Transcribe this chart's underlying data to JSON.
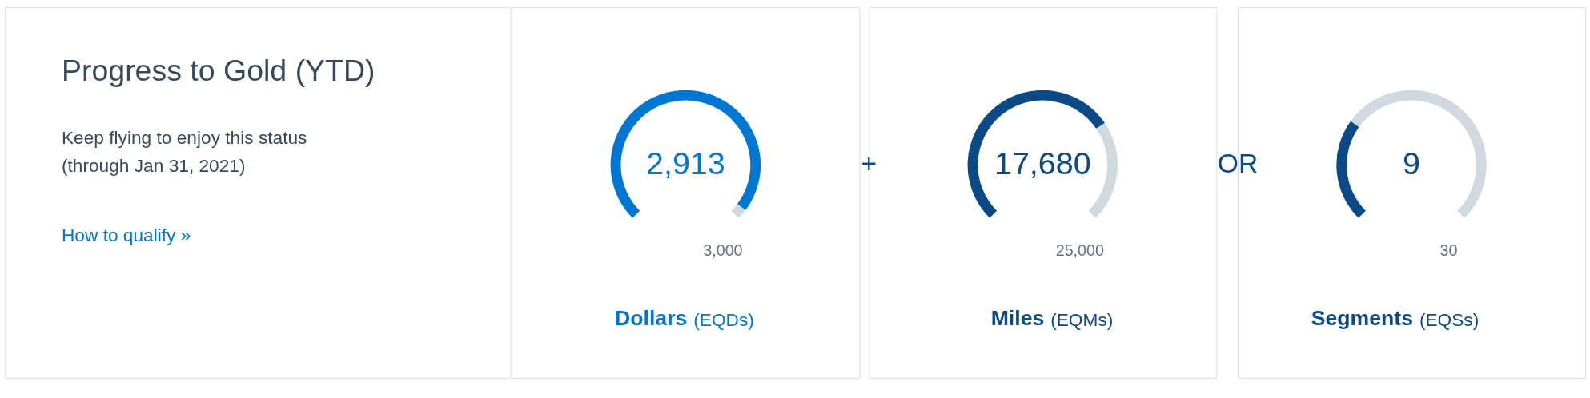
{
  "chart_data": [
    {
      "type": "other",
      "title": "Progress to Gold (YTD)",
      "subtitle": [
        "Keep flying to enjoy this status",
        "(through Jan 31, 2021)"
      ],
      "annotations": [
        "How to qualify »"
      ]
    },
    {
      "type": "donut",
      "categories": [
        null,
        null
      ],
      "values": [
        97.1,
        2.9
      ],
      "colors": [
        "#0078d2",
        "#d0d9e0"
      ],
      "xlabel": "Dollars (EQDs)",
      "annotations": [
        "2,913",
        "3,000"
      ]
    },
    {
      "type": "donut",
      "categories": [
        null,
        null
      ],
      "values": [
        70.7,
        29.3
      ],
      "colors": [
        "#0b4a85",
        "#d0d9e0"
      ],
      "xlabel": "Miles (EQMs)",
      "annotations": [
        "17,680",
        "25,000",
        "+"
      ]
    },
    {
      "type": "donut",
      "categories": [
        null,
        null
      ],
      "values": [
        30,
        70
      ],
      "colors": [
        "#0b4a85",
        "#d0d9e0"
      ],
      "xlabel": "Segments (EQSs)",
      "annotations": [
        "9",
        "30",
        "OR"
      ]
    }
  ]
}
